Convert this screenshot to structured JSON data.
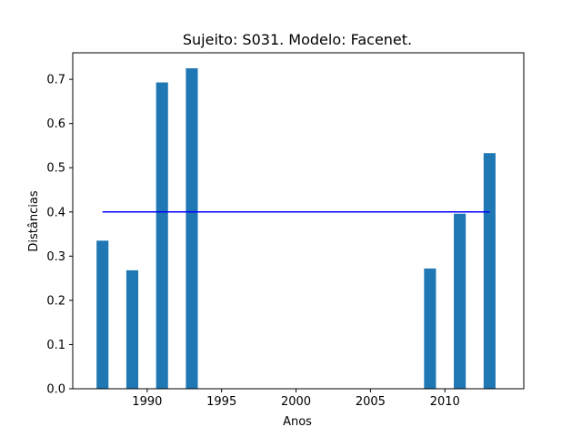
{
  "chart_data": {
    "type": "bar",
    "title": "Sujeito: S031. Modelo: Facenet.",
    "xlabel": "Anos",
    "ylabel": "Distâncias",
    "xlim": [
      1985.0,
      2015.3
    ],
    "ylim": [
      0,
      0.76
    ],
    "x_ticks": [
      1990,
      1995,
      2000,
      2005,
      2010
    ],
    "y_ticks": [
      0.0,
      0.1,
      0.2,
      0.3,
      0.4,
      0.5,
      0.6,
      0.7
    ],
    "x_tick_labels": [
      "1990",
      "1995",
      "2000",
      "2005",
      "2010"
    ],
    "y_tick_labels": [
      "0.0",
      "0.1",
      "0.2",
      "0.3",
      "0.4",
      "0.5",
      "0.6",
      "0.7"
    ],
    "bar_width_years": 0.8,
    "bar_color": "#1f77b4",
    "bars": [
      {
        "x": 1987,
        "value": 0.335
      },
      {
        "x": 1989,
        "value": 0.268
      },
      {
        "x": 1991,
        "value": 0.693
      },
      {
        "x": 1993,
        "value": 0.725
      },
      {
        "x": 2009,
        "value": 0.272
      },
      {
        "x": 2011,
        "value": 0.396
      },
      {
        "x": 2013,
        "value": 0.533
      }
    ],
    "threshold_line": {
      "x": [
        1987,
        2013
      ],
      "y": 0.4,
      "color": "#0000ff"
    },
    "grid": false,
    "legend": "none"
  }
}
